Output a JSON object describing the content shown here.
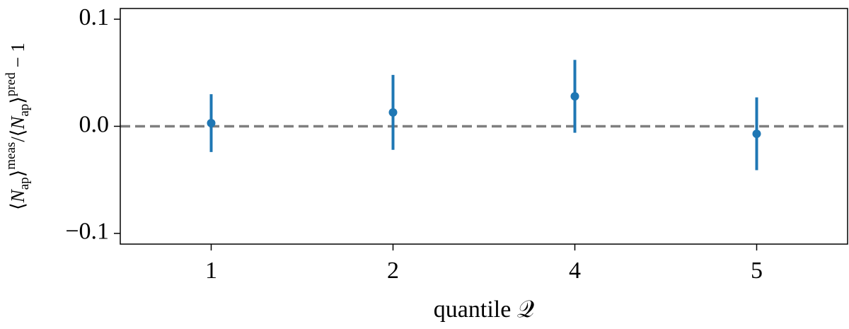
{
  "chart_data": {
    "type": "errorbar",
    "xlabel": "quantile 𝒬",
    "ylabel_parts": [
      "⟨",
      "N",
      "ap",
      "⟩",
      "meas",
      "/⟨",
      "N",
      "ap",
      "⟩",
      "pred",
      " − 1"
    ],
    "categories": [
      "1",
      "2",
      "4",
      "5"
    ],
    "values": [
      0.003,
      0.013,
      0.028,
      -0.007
    ],
    "errors": [
      0.027,
      0.035,
      0.034,
      0.034
    ],
    "color": "#1f77b4",
    "reference_line": {
      "value": 0,
      "color": "#7f7f7f"
    },
    "ylim": [
      -0.11,
      0.11
    ],
    "yticks": [
      {
        "value": -0.1,
        "label": "−0.1"
      },
      {
        "value": 0,
        "label": "0.0"
      },
      0.1
    ]
  }
}
